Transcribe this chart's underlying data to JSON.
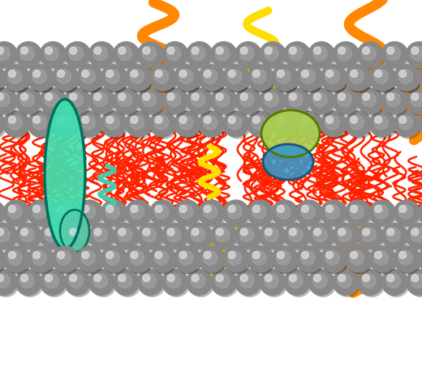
{
  "bg_color": "#ffffff",
  "sphere_color": "#888888",
  "tail_color_red": "#ff2200",
  "tail_color_orange": "#ff8800",
  "tail_color_yellow": "#ffdd00",
  "protein_teal_color": "#40e0b0",
  "protein_green_yellow": "#99cc44",
  "protein_blue": "#4499cc",
  "figsize": [
    5.2,
    4.63
  ],
  "dpi": 100
}
